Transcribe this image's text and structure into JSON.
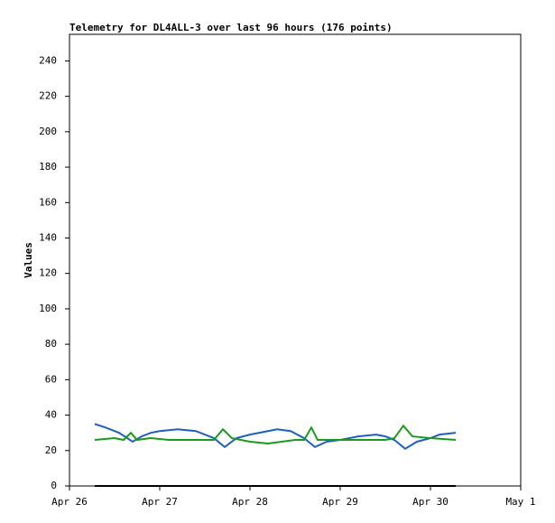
{
  "chart_data": {
    "type": "line",
    "title": "Telemetry for DL4ALL-3 over last 96 hours (176 points)",
    "y_label": "Values",
    "xlim": [
      0,
      5
    ],
    "xticks": [
      {
        "value": 0,
        "label": "Apr 26"
      },
      {
        "value": 1,
        "label": "Apr 27"
      },
      {
        "value": 2,
        "label": "Apr 28"
      },
      {
        "value": 3,
        "label": "Apr 29"
      },
      {
        "value": 4,
        "label": "Apr 30"
      },
      {
        "value": 5,
        "label": "May 1"
      }
    ],
    "ylim": [
      0,
      255
    ],
    "yticks": [
      0,
      20,
      40,
      60,
      80,
      100,
      120,
      140,
      160,
      180,
      200,
      220,
      240
    ],
    "series": [
      {
        "color": "#1f5fbf",
        "x": [
          0.28,
          0.4,
          0.55,
          0.7,
          0.8,
          0.9,
          1.0,
          1.2,
          1.4,
          1.55,
          1.6,
          1.72,
          1.85,
          2.0,
          2.2,
          2.3,
          2.45,
          2.6,
          2.72,
          2.85,
          3.0,
          3.2,
          3.4,
          3.5,
          3.6,
          3.72,
          3.85,
          4.0,
          4.1,
          4.28
        ],
        "values": [
          35,
          33,
          30,
          25,
          28,
          30,
          31,
          32,
          31,
          28,
          27,
          22,
          27,
          29,
          31,
          32,
          31,
          27,
          22,
          25,
          26,
          28,
          29,
          28,
          26,
          21,
          25,
          27,
          29,
          30
        ]
      },
      {
        "color": "#1a9a1a",
        "x": [
          0.28,
          0.5,
          0.6,
          0.68,
          0.75,
          0.9,
          1.1,
          1.5,
          1.6,
          1.7,
          1.8,
          2.0,
          2.2,
          2.5,
          2.6,
          2.68,
          2.75,
          3.0,
          3.5,
          3.6,
          3.7,
          3.8,
          4.0,
          4.28
        ],
        "values": [
          26,
          27,
          26,
          30,
          26,
          27,
          26,
          26,
          26,
          32,
          27,
          25,
          24,
          26,
          26,
          33,
          26,
          26,
          26,
          27,
          34,
          28,
          27,
          26
        ]
      },
      {
        "color": "#000000",
        "x": [
          0.28,
          4.28
        ],
        "values": [
          0,
          0
        ]
      }
    ]
  }
}
